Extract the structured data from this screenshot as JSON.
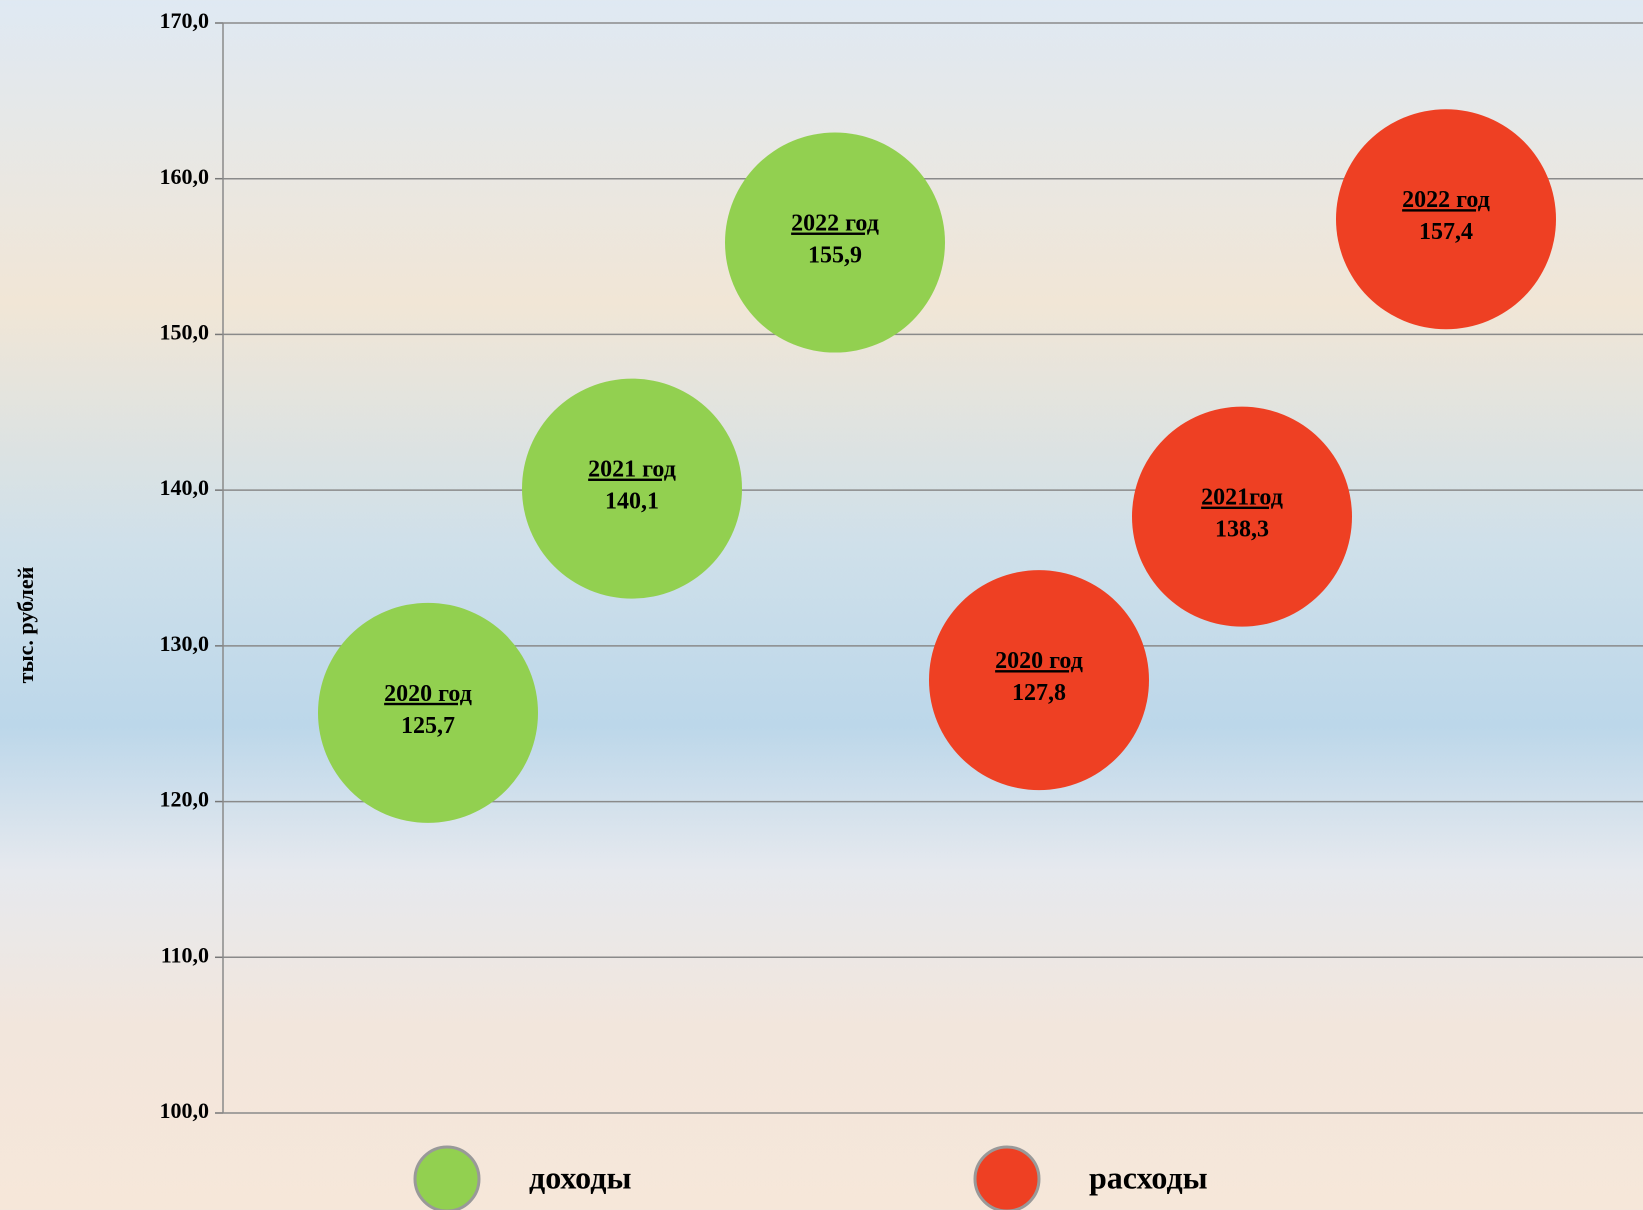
{
  "chart_data": {
    "type": "scatter",
    "y_label": "тыс. рублей",
    "ylim": [
      100,
      170
    ],
    "yticks": [
      {
        "value": 100,
        "label": "100,0"
      },
      {
        "value": 110,
        "label": "110,0"
      },
      {
        "value": 120,
        "label": "120,0"
      },
      {
        "value": 130,
        "label": "130,0"
      },
      {
        "value": 140,
        "label": "140,0"
      },
      {
        "value": 150,
        "label": "150,0"
      },
      {
        "value": 160,
        "label": "160,0"
      },
      {
        "value": 170,
        "label": "170,0"
      }
    ],
    "grid": true,
    "legend": "bottom",
    "series": [
      {
        "name": "доходы",
        "color": "#92d050",
        "values": [
          125.7,
          140.1,
          155.9
        ],
        "labels": [
          "2020 год",
          "2021 год",
          "2022 год"
        ],
        "value_labels": [
          "125,7",
          "140,1",
          "155,9"
        ]
      },
      {
        "name": "расходы",
        "color": "#ee4023",
        "values": [
          127.8,
          138.3,
          157.4
        ],
        "labels": [
          "2020 год",
          "2021год",
          "2022 год"
        ],
        "value_labels": [
          "127,8",
          "138,3",
          "157,4"
        ]
      }
    ]
  }
}
